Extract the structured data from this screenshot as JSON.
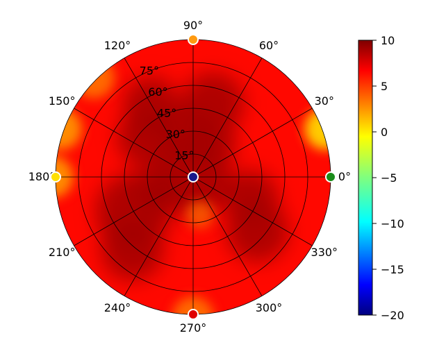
{
  "chart_data": {
    "type": "heatmap",
    "projection": "polar",
    "title": "",
    "grid": true,
    "angle_ticks": [
      {
        "deg": 0,
        "label": "0°"
      },
      {
        "deg": 30,
        "label": "30°"
      },
      {
        "deg": 60,
        "label": "60°"
      },
      {
        "deg": 90,
        "label": "90°"
      },
      {
        "deg": 120,
        "label": "120°"
      },
      {
        "deg": 150,
        "label": "150°"
      },
      {
        "deg": 180,
        "label": "180°"
      },
      {
        "deg": 210,
        "label": "210°"
      },
      {
        "deg": 240,
        "label": "240°"
      },
      {
        "deg": 270,
        "label": "270°"
      },
      {
        "deg": 300,
        "label": "300°"
      },
      {
        "deg": 330,
        "label": "330°"
      }
    ],
    "radial_ticks": [
      {
        "value": 15,
        "label": "15°"
      },
      {
        "value": 30,
        "label": "30°"
      },
      {
        "value": 45,
        "label": "45°"
      },
      {
        "value": 60,
        "label": "60°"
      },
      {
        "value": 75,
        "label": "75°"
      }
    ],
    "radial_range": [
      0,
      90
    ],
    "colorbar": {
      "range": [
        -20,
        10
      ],
      "ticks": [
        10,
        5,
        0,
        -5,
        -10,
        -15,
        -20
      ],
      "tick_labels": [
        "10",
        "5",
        "0",
        "−5",
        "−10",
        "−15",
        "−20"
      ],
      "colormap": "jet"
    },
    "markers": [
      {
        "angle": 0,
        "r": 90,
        "color": "#1a8c1a"
      },
      {
        "angle": 90,
        "r": 90,
        "color": "#ff9a10"
      },
      {
        "angle": 180,
        "r": 90,
        "color": "#ffe000"
      },
      {
        "angle": 270,
        "r": 90,
        "color": "#e00000"
      },
      {
        "angle": 0,
        "r": 0,
        "color": "#1a1a8c"
      }
    ],
    "field_summary": {
      "base_value": 6,
      "dark_regions_value": 9,
      "warm_edge_values": [
        {
          "angle": 20,
          "value": 0
        },
        {
          "angle": 135,
          "value": 3
        },
        {
          "angle": 160,
          "value": 2
        },
        {
          "angle": 180,
          "value": 2
        },
        {
          "angle": 270,
          "value": 3
        }
      ]
    }
  }
}
